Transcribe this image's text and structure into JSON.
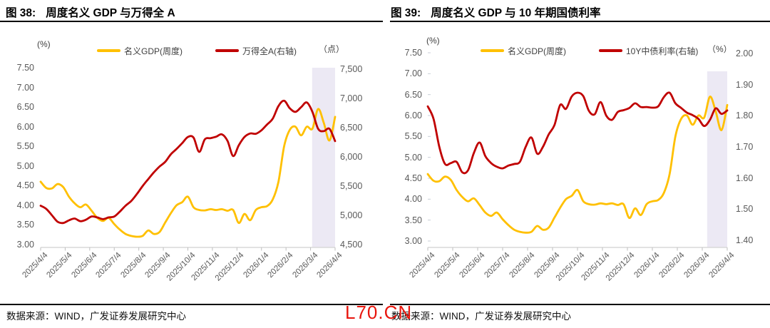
{
  "watermark": "L70.CN",
  "chart_data": [
    {
      "type": "line",
      "title_prefix": "图 38:",
      "title": "周度名义 GDP 与万得全 A",
      "source": "数据来源：WIND，广发证券发展研究中心",
      "left_axis": {
        "unit": "(%)",
        "min": 3.0,
        "max": 7.5,
        "ticks": [
          "7.50",
          "7.00",
          "6.50",
          "6.00",
          "5.50",
          "5.00",
          "4.50",
          "4.00",
          "3.50",
          "3.00"
        ]
      },
      "right_axis": {
        "unit": "（点）",
        "min": 4500,
        "max": 7500,
        "ticks": [
          "7,500",
          "7,000",
          "6,500",
          "6,000",
          "5,500",
          "5,000",
          "4,500"
        ]
      },
      "x_tick_labels": [
        "2025/4/4",
        "2025/5/4",
        "2025/6/4",
        "2025/7/4",
        "2025/8/4",
        "2025/9/4",
        "2025/10/4",
        "2025/11/4",
        "2025/12/4",
        "2026/1/4",
        "2026/2/4",
        "2026/3/4",
        "2026/4/4"
      ],
      "legend": [
        {
          "name": "名义GDP(周度)",
          "color": "#FFC000"
        },
        {
          "name": "万得全A(右轴)",
          "color": "#C00000"
        }
      ],
      "highlight_band": {
        "start_frac": 0.922,
        "end_frac": 1.0,
        "color": "#ECE9F4"
      },
      "series": [
        {
          "name": "名义GDP(周度)",
          "axis": "left",
          "color": "#FFC000",
          "values": [
            4.6,
            4.44,
            4.43,
            4.54,
            4.46,
            4.22,
            4.05,
            3.95,
            4.02,
            3.86,
            3.68,
            3.6,
            3.68,
            3.52,
            3.38,
            3.27,
            3.22,
            3.2,
            3.22,
            3.36,
            3.27,
            3.32,
            3.56,
            3.8,
            4.0,
            4.08,
            4.22,
            3.95,
            3.88,
            3.87,
            3.9,
            3.88,
            3.9,
            3.86,
            3.88,
            3.55,
            3.78,
            3.62,
            3.88,
            3.95,
            3.98,
            4.15,
            4.6,
            5.5,
            5.92,
            6.0,
            5.78,
            6.0,
            5.95,
            6.45,
            6.1,
            5.65,
            6.25
          ]
        },
        {
          "name": "万得全A(右轴)",
          "axis": "right",
          "color": "#C00000",
          "values": [
            5165,
            5110,
            5000,
            4890,
            4870,
            4915,
            4945,
            4900,
            4925,
            4980,
            4965,
            4935,
            4965,
            4980,
            5065,
            5165,
            5245,
            5365,
            5500,
            5620,
            5735,
            5835,
            5915,
            6045,
            6135,
            6235,
            6340,
            6330,
            6085,
            6300,
            6320,
            6345,
            6385,
            6275,
            6015,
            6200,
            6340,
            6400,
            6395,
            6455,
            6555,
            6655,
            6870,
            6960,
            6830,
            6770,
            6850,
            6930,
            6770,
            6480,
            6440,
            6480,
            6270
          ]
        }
      ]
    },
    {
      "type": "line",
      "title_prefix": "图 39:",
      "title": "周度名义 GDP 与 10 年期国债利率",
      "source": "数据来源：WIND，广发证券发展研究中心",
      "left_axis": {
        "unit": "(%)",
        "min": 3.0,
        "max": 7.5,
        "ticks": [
          "7.50",
          "7.00",
          "6.50",
          "6.00",
          "5.50",
          "5.00",
          "4.50",
          "4.00",
          "3.50",
          "3.00"
        ]
      },
      "right_axis": {
        "unit": "（%）",
        "min": 1.4,
        "max": 2.0,
        "ticks": [
          "2.00",
          "1.90",
          "1.80",
          "1.70",
          "1.60",
          "1.50",
          "1.40"
        ]
      },
      "x_tick_labels": [
        "2025/4/4",
        "2025/5/4",
        "2025/6/4",
        "2025/7/4",
        "2025/8/4",
        "2025/9/4",
        "2025/10/4",
        "2025/11/4",
        "2025/12/4",
        "2026/1/4",
        "2026/2/4",
        "2026/3/4",
        "2026/4/4"
      ],
      "legend": [
        {
          "name": "名义GDP(周度)",
          "color": "#FFC000"
        },
        {
          "name": "10Y中债利率(右轴)",
          "color": "#C00000"
        }
      ],
      "highlight_band": {
        "start_frac": 0.933,
        "end_frac": 1.0,
        "color": "#ECE9F4"
      },
      "series": [
        {
          "name": "名义GDP(周度)",
          "axis": "left",
          "color": "#FFC000",
          "values": [
            4.6,
            4.44,
            4.43,
            4.54,
            4.46,
            4.22,
            4.05,
            3.95,
            4.02,
            3.86,
            3.68,
            3.6,
            3.68,
            3.52,
            3.38,
            3.27,
            3.22,
            3.2,
            3.22,
            3.36,
            3.27,
            3.32,
            3.56,
            3.8,
            4.0,
            4.08,
            4.22,
            3.95,
            3.88,
            3.87,
            3.9,
            3.88,
            3.9,
            3.86,
            3.88,
            3.55,
            3.78,
            3.62,
            3.88,
            3.95,
            3.98,
            4.15,
            4.6,
            5.5,
            5.92,
            6.0,
            5.78,
            6.0,
            5.95,
            6.45,
            6.1,
            5.65,
            6.25
          ]
        },
        {
          "name": "10Y中债利率(右轴)",
          "axis": "right",
          "color": "#C00000",
          "values": [
            1.83,
            1.79,
            1.7,
            1.645,
            1.648,
            1.652,
            1.618,
            1.625,
            1.68,
            1.714,
            1.67,
            1.648,
            1.636,
            1.631,
            1.64,
            1.645,
            1.652,
            1.7,
            1.73,
            1.678,
            1.7,
            1.74,
            1.77,
            1.835,
            1.822,
            1.862,
            1.874,
            1.863,
            1.815,
            1.805,
            1.844,
            1.8,
            1.787,
            1.812,
            1.818,
            1.825,
            1.84,
            1.828,
            1.828,
            1.826,
            1.83,
            1.86,
            1.874,
            1.84,
            1.825,
            1.81,
            1.802,
            1.79,
            1.767,
            1.787,
            1.824,
            1.806,
            1.817
          ]
        }
      ]
    }
  ]
}
